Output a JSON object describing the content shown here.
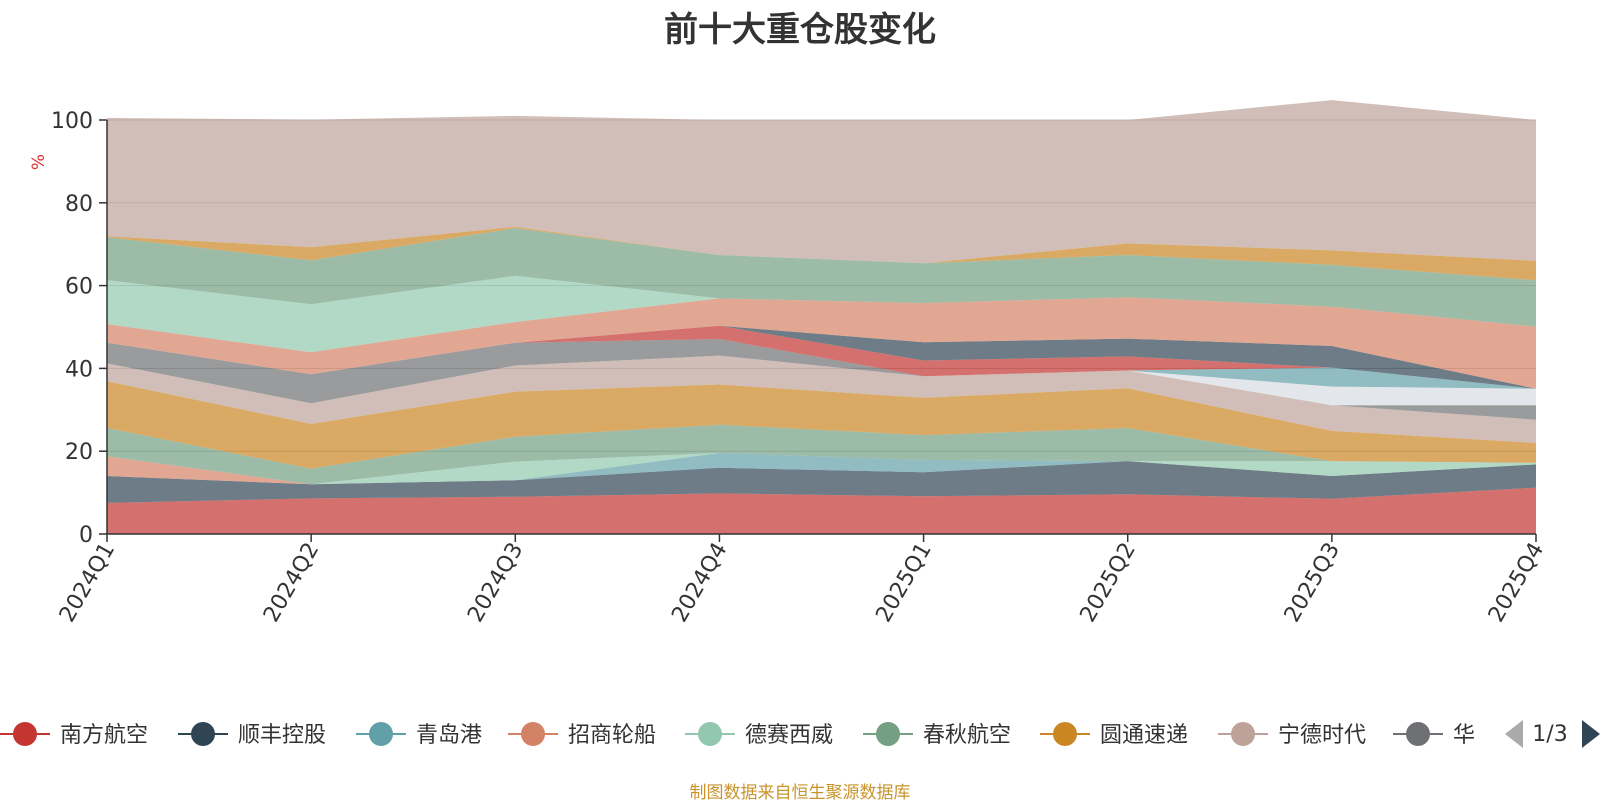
{
  "chart_data": {
    "type": "area",
    "title": "前十大重仓股变化",
    "ylabel": "%",
    "ylim": [
      0,
      100
    ],
    "yticks": [
      0,
      20,
      40,
      60,
      80,
      100
    ],
    "categories": [
      "2024Q1",
      "2024Q2",
      "2024Q3",
      "2024Q4",
      "2025Q1",
      "2025Q2",
      "2025Q3",
      "2025Q4"
    ],
    "grid": true,
    "legend_position": "bottom",
    "stacked": true,
    "series": [
      {
        "name": "南方航空",
        "color": "#c23531",
        "values": [
          7.5,
          8.6,
          9.0,
          9.8,
          9.1,
          9.6,
          8.5,
          11.2
        ]
      },
      {
        "name": "顺丰控股",
        "color": "#2f4554",
        "values": [
          6.5,
          3.4,
          4.0,
          6.2,
          5.8,
          8.0,
          5.5,
          5.6
        ]
      },
      {
        "name": "青岛港",
        "color": "#61a0a8",
        "values": [
          0,
          0,
          0,
          3.6,
          3.0,
          0,
          0,
          0
        ]
      },
      {
        "name": "招商轮船",
        "color": "#d48265",
        "values": [
          4.8,
          0,
          0,
          0,
          0,
          0,
          0,
          0
        ]
      },
      {
        "name": "德赛西威",
        "color": "#91c7ae",
        "values": [
          0,
          0,
          4.5,
          0,
          0,
          0,
          3.6,
          0.4
        ]
      },
      {
        "name": "春秋航空",
        "color": "#749f83",
        "values": [
          6.8,
          3.8,
          6.0,
          6.8,
          6.0,
          8.0,
          0,
          0
        ]
      },
      {
        "name": "圆通速递",
        "color": "#ca8622",
        "values": [
          11.3,
          10.8,
          10.9,
          9.7,
          9.0,
          9.6,
          7.3,
          4.8
        ]
      },
      {
        "name": "宁德时代",
        "color": "#bda29a",
        "values": [
          4.3,
          5.0,
          6.3,
          7.0,
          5.2,
          4.3,
          6.2,
          5.6
        ]
      }
    ],
    "extra_layers": [
      {
        "color": "#6e7074",
        "values": [
          5.0,
          7.0,
          5.5,
          4.0,
          0,
          0,
          0,
          3.5
        ]
      },
      {
        "color": "#d7dde3",
        "values": [
          0,
          0,
          0,
          0,
          0,
          0,
          4.5,
          4.0
        ]
      },
      {
        "color": "#61a0a8",
        "values": [
          0,
          0,
          0,
          0,
          0,
          0,
          4.6,
          0
        ]
      },
      {
        "color": "#c23531",
        "values": [
          0,
          0,
          0,
          3.2,
          3.8,
          3.4,
          0,
          0
        ]
      },
      {
        "color": "#2f4554",
        "values": [
          0,
          0,
          0,
          0,
          4.4,
          4.3,
          5.2,
          0
        ]
      },
      {
        "color": "#d48265",
        "values": [
          4.5,
          5.3,
          5.0,
          6.6,
          9.5,
          10.0,
          9.5,
          15.0
        ]
      },
      {
        "color": "#91c7ae",
        "values": [
          10.6,
          11.6,
          11.2,
          0,
          0,
          0,
          0,
          0
        ]
      },
      {
        "color": "#749f83",
        "values": [
          10.4,
          10.6,
          11.5,
          10.5,
          9.6,
          10.2,
          10.1,
          11.2
        ]
      },
      {
        "color": "#ca8622",
        "values": [
          0.2,
          3.2,
          0.3,
          0,
          0,
          2.8,
          3.5,
          4.7
        ]
      },
      {
        "color": "#bda29a",
        "values": [
          28.6,
          30.8,
          26.8,
          32.6,
          34.6,
          29.8,
          36.3,
          34.0
        ]
      }
    ],
    "legend_page": "1/3",
    "legend_truncated_item": "华"
  },
  "footer": {
    "source_note": "制图数据来自恒生聚源数据库"
  }
}
